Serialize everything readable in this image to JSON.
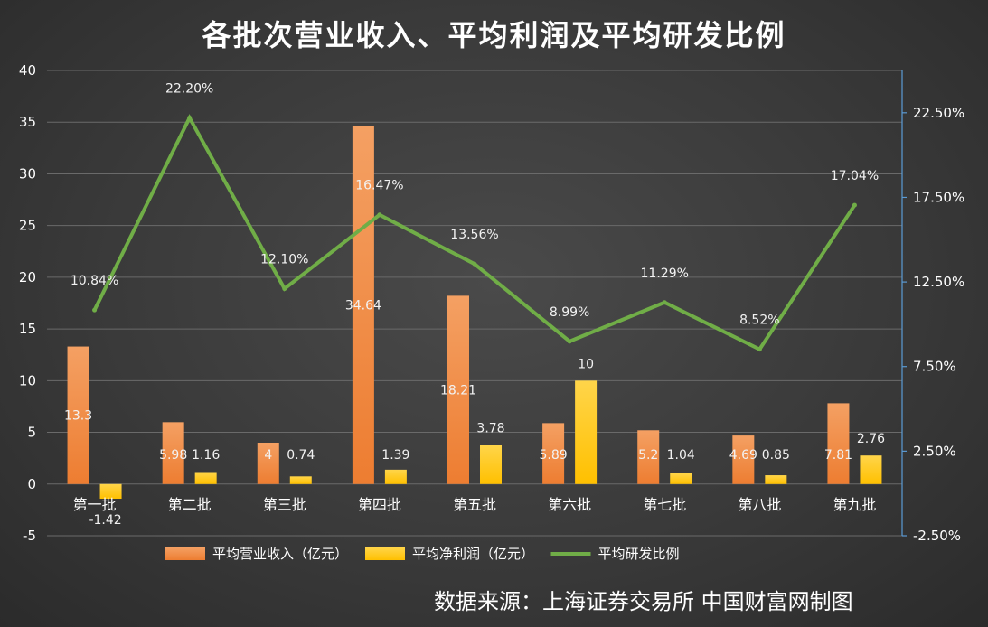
{
  "colors": {
    "revenue": "#ed7d31",
    "profit": "#ffc000",
    "rd": "#70ad47",
    "right_axis": "#5b9bd5",
    "grid": "#6a6a6a"
  },
  "chart_data": {
    "type": "bar",
    "title": "各批次营业收入、平均利润及平均研发比例",
    "categories": [
      "第一批",
      "第二批",
      "第三批",
      "第四批",
      "第五批",
      "第六批",
      "第七批",
      "第八批",
      "第九批"
    ],
    "series": [
      {
        "name": "平均营业收入（亿元）",
        "type": "bar",
        "axis": "left",
        "values": [
          13.3,
          5.98,
          4,
          34.64,
          18.21,
          5.89,
          5.2,
          4.69,
          7.81
        ],
        "labels": [
          "13.3",
          "5.98",
          "4",
          "34.64",
          "18.21",
          "5.89",
          "5.2",
          "4.69",
          "7.81"
        ]
      },
      {
        "name": "平均净利润（亿元）",
        "type": "bar",
        "axis": "left",
        "values": [
          -1.42,
          1.16,
          0.74,
          1.39,
          3.78,
          10,
          1.04,
          0.85,
          2.76
        ],
        "labels": [
          "-1.42",
          "1.16",
          "0.74",
          "1.39",
          "3.78",
          "10",
          "1.04",
          "0.85",
          "2.76"
        ]
      },
      {
        "name": "平均研发比例",
        "type": "line",
        "axis": "right",
        "values": [
          10.84,
          22.2,
          12.1,
          16.47,
          13.56,
          8.99,
          11.29,
          8.52,
          17.04
        ],
        "labels": [
          "10.84%",
          "22.20%",
          "12.10%",
          "16.47%",
          "13.56%",
          "8.99%",
          "11.29%",
          "8.52%",
          "17.04%"
        ]
      }
    ],
    "ylim_left": [
      -5,
      40
    ],
    "yticks_left": [
      "40",
      "35",
      "30",
      "25",
      "20",
      "15",
      "10",
      "5",
      "0",
      "-5"
    ],
    "yticks_left_values": [
      40,
      35,
      30,
      25,
      20,
      15,
      10,
      5,
      0,
      -5
    ],
    "ylim_right": [
      -2.5,
      25
    ],
    "yticks_right": [
      "22.50%",
      "17.50%",
      "12.50%",
      "7.50%",
      "2.50%",
      "-2.50%"
    ],
    "yticks_right_values": [
      22.5,
      17.5,
      12.5,
      7.5,
      2.5,
      -2.5
    ],
    "grid": true,
    "legend_position": "bottom"
  },
  "source": "数据来源：上海证券交易所 中国财富网制图"
}
